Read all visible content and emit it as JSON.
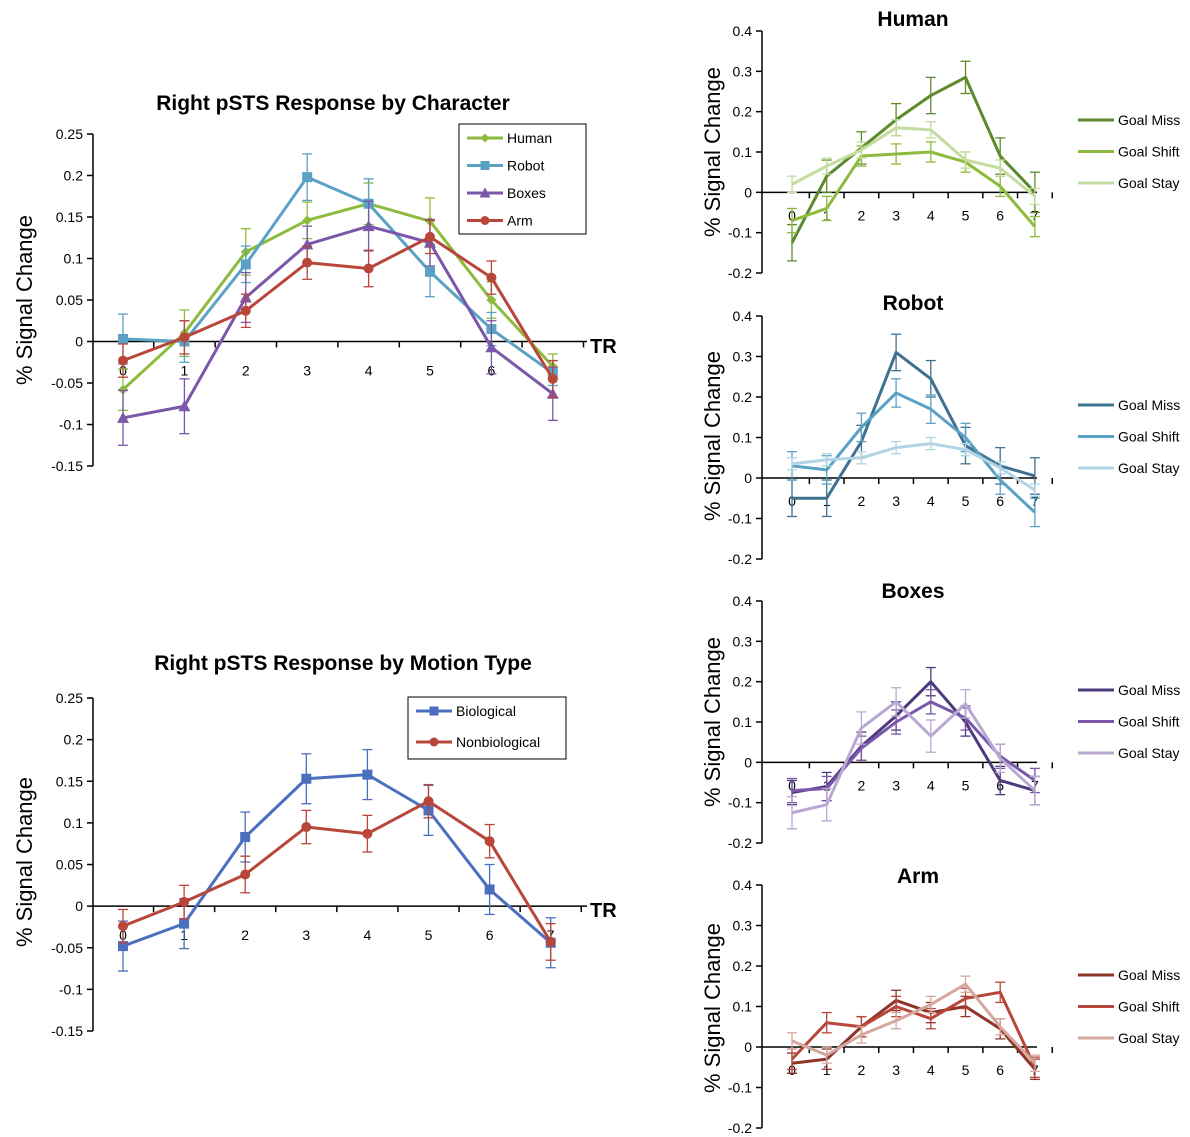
{
  "chart_data": [
    {
      "id": "character",
      "type": "line",
      "title": "Right pSTS Response by Character",
      "ylabel": "% Signal Change",
      "xlabel": "TR",
      "ylim": [
        -0.15,
        0.25
      ],
      "yticks": [
        -0.15,
        -0.1,
        -0.05,
        0,
        0.05,
        0.1,
        0.15,
        0.2,
        0.25
      ],
      "ytick_labels": [
        "-0.15",
        "-0.1",
        "-0.05",
        "0",
        "0.05",
        "0.1",
        "0.15",
        "0.2",
        "0.25"
      ],
      "x": [
        0,
        1,
        2,
        3,
        4,
        5,
        6,
        7
      ],
      "xtick_labels": [
        "0",
        "1",
        "2",
        "3",
        "4",
        "5",
        "6",
        "7"
      ],
      "legend": "top-right",
      "series": [
        {
          "name": "Human",
          "color": "#8dbb3e",
          "marker": "diamond",
          "values": [
            -0.058,
            0.01,
            0.108,
            0.146,
            0.166,
            0.145,
            0.05,
            -0.03
          ],
          "errors": [
            0.025,
            0.028,
            0.028,
            0.022,
            0.025,
            0.028,
            0.022,
            0.015
          ]
        },
        {
          "name": "Robot",
          "color": "#5aa2c5",
          "marker": "square",
          "values": [
            0.003,
            0.0,
            0.093,
            0.198,
            0.166,
            0.084,
            0.015,
            -0.038
          ],
          "errors": [
            0.03,
            0.025,
            0.022,
            0.028,
            0.03,
            0.03,
            0.02,
            0.015
          ]
        },
        {
          "name": "Boxes",
          "color": "#7a57a8",
          "marker": "triangle",
          "values": [
            -0.092,
            -0.078,
            0.053,
            0.117,
            0.139,
            0.119,
            -0.007,
            -0.063
          ],
          "errors": [
            0.033,
            0.033,
            0.03,
            0.022,
            0.03,
            0.028,
            0.032,
            0.032
          ]
        },
        {
          "name": "Arm",
          "color": "#b9463a",
          "marker": "circle",
          "values": [
            -0.023,
            0.005,
            0.037,
            0.095,
            0.088,
            0.126,
            0.077,
            -0.045
          ],
          "errors": [
            0.02,
            0.02,
            0.02,
            0.02,
            0.022,
            0.02,
            0.02,
            0.022
          ]
        }
      ]
    },
    {
      "id": "motion",
      "type": "line",
      "title": "Right pSTS Response by Motion Type",
      "ylabel": "% Signal Change",
      "xlabel": "TR",
      "ylim": [
        -0.15,
        0.25
      ],
      "yticks": [
        -0.15,
        -0.1,
        -0.05,
        0,
        0.05,
        0.1,
        0.15,
        0.2,
        0.25
      ],
      "ytick_labels": [
        "-0.15",
        "-0.1",
        "-0.05",
        "0",
        "0.05",
        "0.1",
        "0.15",
        "0.2",
        "0.25"
      ],
      "x": [
        0,
        1,
        2,
        3,
        4,
        5,
        6,
        7
      ],
      "xtick_labels": [
        "0",
        "1",
        "2",
        "3",
        "4",
        "5",
        "6",
        "7"
      ],
      "legend": "top-right",
      "series": [
        {
          "name": "Biological",
          "color": "#4a6fbf",
          "marker": "square",
          "values": [
            -0.048,
            -0.021,
            0.083,
            0.153,
            0.158,
            0.115,
            0.02,
            -0.044
          ],
          "errors": [
            0.03,
            0.03,
            0.03,
            0.03,
            0.03,
            0.03,
            0.03,
            0.03
          ]
        },
        {
          "name": "Nonbiological",
          "color": "#b9463a",
          "marker": "circle",
          "values": [
            -0.024,
            0.005,
            0.038,
            0.095,
            0.087,
            0.126,
            0.078,
            -0.043
          ],
          "errors": [
            0.02,
            0.02,
            0.022,
            0.02,
            0.022,
            0.02,
            0.02,
            0.022
          ]
        }
      ]
    },
    {
      "id": "human",
      "type": "line",
      "title": "Human",
      "ylabel": "% Signal Change",
      "ylim": [
        -0.2,
        0.4
      ],
      "yticks": [
        -0.2,
        -0.1,
        0,
        0.1,
        0.2,
        0.3,
        0.4
      ],
      "ytick_labels": [
        "-0.2",
        "-0.1",
        "0",
        "0.1",
        "0.2",
        "0.3",
        "0.4"
      ],
      "x": [
        0,
        1,
        2,
        3,
        4,
        5,
        6,
        7
      ],
      "xtick_labels": [
        "0",
        "1",
        "2",
        "3",
        "4",
        "5",
        "6",
        "7"
      ],
      "legend": "right",
      "series": [
        {
          "name": "Goal Miss",
          "color": "#5d8a2d",
          "values": [
            -0.125,
            0.04,
            0.11,
            0.18,
            0.24,
            0.285,
            0.09,
            0.0
          ],
          "errors": [
            0.045,
            0.04,
            0.04,
            0.04,
            0.045,
            0.04,
            0.045,
            0.05
          ]
        },
        {
          "name": "Goal Shift",
          "color": "#8dbb3e",
          "values": [
            -0.07,
            -0.04,
            0.09,
            0.095,
            0.1,
            0.075,
            0.015,
            -0.085
          ],
          "errors": [
            0.03,
            0.03,
            0.025,
            0.025,
            0.025,
            0.025,
            0.025,
            0.025
          ]
        },
        {
          "name": "Goal Stay",
          "color": "#c4dca0",
          "values": [
            0.02,
            0.065,
            0.105,
            0.16,
            0.155,
            0.08,
            0.06,
            -0.01
          ],
          "errors": [
            0.02,
            0.02,
            0.02,
            0.02,
            0.02,
            0.02,
            0.02,
            0.02
          ]
        }
      ]
    },
    {
      "id": "robot",
      "type": "line",
      "title": "Robot",
      "ylabel": "% Signal Change",
      "ylim": [
        -0.2,
        0.4
      ],
      "yticks": [
        -0.2,
        -0.1,
        0,
        0.1,
        0.2,
        0.3,
        0.4
      ],
      "ytick_labels": [
        "-0.2",
        "-0.1",
        "0",
        "0.1",
        "0.2",
        "0.3",
        "0.4"
      ],
      "x": [
        0,
        1,
        2,
        3,
        4,
        5,
        6,
        7
      ],
      "xtick_labels": [
        "0",
        "1",
        "2",
        "3",
        "4",
        "5",
        "6",
        "7"
      ],
      "legend": "right",
      "series": [
        {
          "name": "Goal Miss",
          "color": "#3f7190",
          "values": [
            -0.05,
            -0.05,
            0.09,
            0.31,
            0.245,
            0.08,
            0.03,
            0.005
          ],
          "errors": [
            0.045,
            0.045,
            0.04,
            0.045,
            0.045,
            0.045,
            0.045,
            0.045
          ]
        },
        {
          "name": "Goal Shift",
          "color": "#5aa2c5",
          "values": [
            0.03,
            0.02,
            0.125,
            0.21,
            0.17,
            0.1,
            -0.005,
            -0.085
          ],
          "errors": [
            0.035,
            0.035,
            0.035,
            0.035,
            0.035,
            0.035,
            0.035,
            0.035
          ]
        },
        {
          "name": "Goal Stay",
          "color": "#b3d4e4",
          "values": [
            0.035,
            0.045,
            0.05,
            0.075,
            0.085,
            0.07,
            0.025,
            -0.03
          ],
          "errors": [
            0.015,
            0.015,
            0.015,
            0.015,
            0.015,
            0.015,
            0.015,
            0.015
          ]
        }
      ]
    },
    {
      "id": "boxes",
      "type": "line",
      "title": "Boxes",
      "ylabel": "% Signal Change",
      "ylim": [
        -0.2,
        0.4
      ],
      "yticks": [
        -0.2,
        -0.1,
        0,
        0.1,
        0.2,
        0.3,
        0.4
      ],
      "ytick_labels": [
        "-0.2",
        "-0.1",
        "0",
        "0.1",
        "0.2",
        "0.3",
        "0.4"
      ],
      "x": [
        0,
        1,
        2,
        3,
        4,
        5,
        6,
        7
      ],
      "xtick_labels": [
        "0",
        "1",
        "2",
        "3",
        "4",
        "5",
        "6",
        "7"
      ],
      "legend": "right",
      "series": [
        {
          "name": "Goal Miss",
          "color": "#4d3a7c",
          "values": [
            -0.075,
            -0.06,
            0.04,
            0.115,
            0.2,
            0.1,
            -0.045,
            -0.07
          ],
          "errors": [
            0.03,
            0.035,
            0.035,
            0.035,
            0.035,
            0.035,
            0.035,
            0.035
          ]
        },
        {
          "name": "Goal Shift",
          "color": "#7a57a8",
          "values": [
            -0.07,
            -0.065,
            0.035,
            0.1,
            0.15,
            0.11,
            0.015,
            -0.045
          ],
          "errors": [
            0.03,
            0.03,
            0.03,
            0.03,
            0.03,
            0.03,
            0.03,
            0.03
          ]
        },
        {
          "name": "Goal Stay",
          "color": "#b9a9d2",
          "values": [
            -0.125,
            -0.105,
            0.085,
            0.15,
            0.065,
            0.145,
            0.01,
            -0.07
          ],
          "errors": [
            0.04,
            0.04,
            0.04,
            0.035,
            0.04,
            0.035,
            0.035,
            0.035
          ]
        }
      ]
    },
    {
      "id": "arm",
      "type": "line",
      "title": "Arm",
      "ylabel": "% Signal Change",
      "ylim": [
        -0.2,
        0.4
      ],
      "yticks": [
        -0.2,
        -0.1,
        0,
        0.1,
        0.2,
        0.3,
        0.4
      ],
      "ytick_labels": [
        "-0.2",
        "-0.1",
        "0",
        "0.1",
        "0.2",
        "0.3",
        "0.4"
      ],
      "x": [
        0,
        1,
        2,
        3,
        4,
        5,
        6,
        7
      ],
      "xtick_labels": [
        "0",
        "1",
        "2",
        "3",
        "4",
        "5",
        "6",
        "7"
      ],
      "legend": "right",
      "series": [
        {
          "name": "Goal Miss",
          "color": "#8e3529",
          "values": [
            -0.04,
            -0.03,
            0.05,
            0.115,
            0.085,
            0.1,
            0.045,
            -0.055
          ],
          "errors": [
            0.025,
            0.025,
            0.025,
            0.025,
            0.025,
            0.025,
            0.025,
            0.025
          ]
        },
        {
          "name": "Goal Shift",
          "color": "#b9463a",
          "values": [
            -0.03,
            0.06,
            0.05,
            0.1,
            0.07,
            0.12,
            0.135,
            -0.05
          ],
          "errors": [
            0.025,
            0.025,
            0.025,
            0.025,
            0.025,
            0.025,
            0.025,
            0.025
          ]
        },
        {
          "name": "Goal Stay",
          "color": "#d6a79f",
          "values": [
            0.015,
            -0.02,
            0.03,
            0.065,
            0.105,
            0.155,
            0.05,
            -0.04
          ],
          "errors": [
            0.02,
            0.02,
            0.02,
            0.02,
            0.02,
            0.02,
            0.02,
            0.02
          ]
        }
      ]
    }
  ]
}
